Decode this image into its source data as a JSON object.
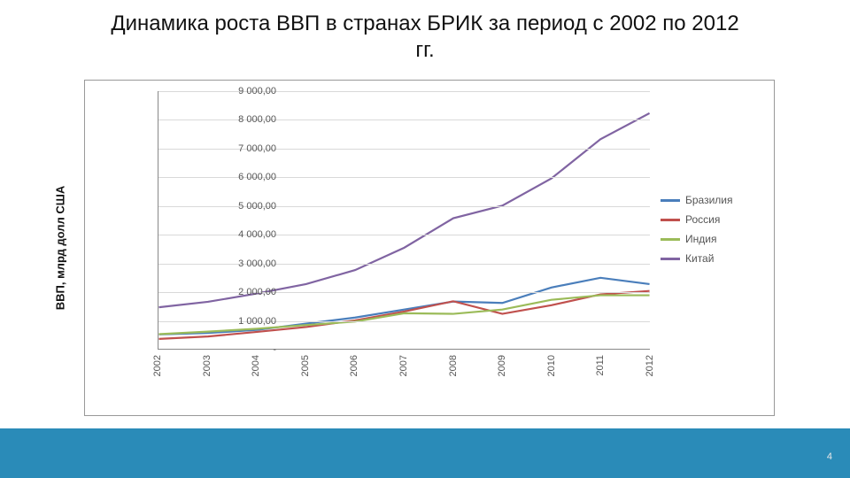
{
  "page": {
    "number": "4"
  },
  "chart": {
    "type": "line",
    "title": "Динамика роста ВВП в странах БРИК за период с 2002 по 2012 гг.",
    "ylabel": "ВВП, млрд долл США",
    "title_fontsize": 24,
    "label_fontsize": 13,
    "tick_fontsize": 11,
    "background_color": "#ffffff",
    "grid_color": "#d9d9d9",
    "axis_color": "#888888",
    "border_color": "#999999",
    "line_width": 2.2,
    "ylim": [
      0,
      9000
    ],
    "ytick_step": 1000,
    "ytick_labels": [
      "-",
      "1 000,00",
      "2 000,00",
      "3 000,00",
      "4 000,00",
      "5 000,00",
      "6 000,00",
      "7 000,00",
      "8 000,00",
      "9 000,00"
    ],
    "x_categories": [
      "2002",
      "2003",
      "2004",
      "2005",
      "2006",
      "2007",
      "2008",
      "2009",
      "2010",
      "2011",
      "2012"
    ],
    "series": [
      {
        "name": "Бразилия",
        "color": "#4a7ebb",
        "values": [
          500,
          550,
          660,
          880,
          1090,
          1370,
          1650,
          1600,
          2140,
          2480,
          2260
        ]
      },
      {
        "name": "Россия",
        "color": "#c0504d",
        "values": [
          345,
          430,
          590,
          760,
          990,
          1300,
          1660,
          1220,
          1520,
          1900,
          2020
        ]
      },
      {
        "name": "Индия",
        "color": "#9bbb59",
        "values": [
          510,
          600,
          700,
          830,
          950,
          1240,
          1220,
          1370,
          1710,
          1870,
          1870
        ]
      },
      {
        "name": "Китай",
        "color": "#8064a2",
        "values": [
          1450,
          1640,
          1930,
          2260,
          2750,
          3530,
          4560,
          5000,
          5950,
          7320,
          8230
        ]
      }
    ],
    "legend_position": "right",
    "footer_bar_color": "#2a8bb8"
  }
}
